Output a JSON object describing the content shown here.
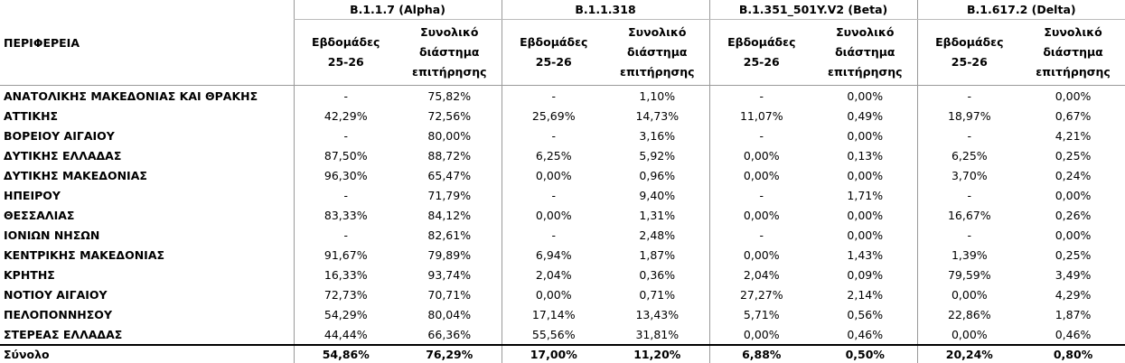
{
  "table": {
    "region_header": "ΠΕΡΙΦΕΡΕΙΑ",
    "groups": [
      "B.1.1.7 (Alpha)",
      "B.1.1.318",
      "B.1.351_501Y.V2 (Beta)",
      "B.1.617.2 (Delta)"
    ],
    "subheaders": [
      "Εβδομάδες 25-26",
      "Συνολικό διάστημα επιτήρησης",
      "Εβδομάδες 25-26",
      "Συνολικό διάστημα επιτήρησης",
      "Εβδομάδες 25-26",
      "Συνολικό διάστημα επιτήρησης",
      "Εβδομάδες 25-26",
      "Συνολικό διάστημα επιτήρησης"
    ],
    "rows": [
      {
        "region": "ΑΝΑΤΟΛΙΚΗΣ ΜΑΚΕΔΟΝΙΑΣ ΚΑΙ ΘΡΑΚΗΣ",
        "values": [
          "-",
          "75,82%",
          "-",
          "1,10%",
          "-",
          "0,00%",
          "-",
          "0,00%"
        ]
      },
      {
        "region": "ΑΤΤΙΚΗΣ",
        "values": [
          "42,29%",
          "72,56%",
          "25,69%",
          "14,73%",
          "11,07%",
          "0,49%",
          "18,97%",
          "0,67%"
        ]
      },
      {
        "region": "ΒΟΡΕΙΟΥ ΑΙΓΑΙΟΥ",
        "values": [
          "-",
          "80,00%",
          "-",
          "3,16%",
          "-",
          "0,00%",
          "-",
          "4,21%"
        ]
      },
      {
        "region": "ΔΥΤΙΚΗΣ ΕΛΛΑΔΑΣ",
        "values": [
          "87,50%",
          "88,72%",
          "6,25%",
          "5,92%",
          "0,00%",
          "0,13%",
          "6,25%",
          "0,25%"
        ]
      },
      {
        "region": "ΔΥΤΙΚΗΣ ΜΑΚΕΔΟΝΙΑΣ",
        "values": [
          "96,30%",
          "65,47%",
          "0,00%",
          "0,96%",
          "0,00%",
          "0,00%",
          "3,70%",
          "0,24%"
        ]
      },
      {
        "region": "ΗΠΕΙΡΟΥ",
        "values": [
          "-",
          "71,79%",
          "-",
          "9,40%",
          "-",
          "1,71%",
          "-",
          "0,00%"
        ]
      },
      {
        "region": "ΘΕΣΣΑΛΙΑΣ",
        "values": [
          "83,33%",
          "84,12%",
          "0,00%",
          "1,31%",
          "0,00%",
          "0,00%",
          "16,67%",
          "0,26%"
        ]
      },
      {
        "region": "ΙΟΝΙΩΝ ΝΗΣΩΝ",
        "values": [
          "-",
          "82,61%",
          "-",
          "2,48%",
          "-",
          "0,00%",
          "-",
          "0,00%"
        ]
      },
      {
        "region": "ΚΕΝΤΡΙΚΗΣ ΜΑΚΕΔΟΝΙΑΣ",
        "values": [
          "91,67%",
          "79,89%",
          "6,94%",
          "1,87%",
          "0,00%",
          "1,43%",
          "1,39%",
          "0,25%"
        ]
      },
      {
        "region": "ΚΡΗΤΗΣ",
        "values": [
          "16,33%",
          "93,74%",
          "2,04%",
          "0,36%",
          "2,04%",
          "0,09%",
          "79,59%",
          "3,49%"
        ]
      },
      {
        "region": "ΝΟΤΙΟΥ ΑΙΓΑΙΟΥ",
        "values": [
          "72,73%",
          "70,71%",
          "0,00%",
          "0,71%",
          "27,27%",
          "2,14%",
          "0,00%",
          "4,29%"
        ]
      },
      {
        "region": "ΠΕΛΟΠΟΝΝΗΣΟΥ",
        "values": [
          "54,29%",
          "80,04%",
          "17,14%",
          "13,43%",
          "5,71%",
          "0,56%",
          "22,86%",
          "1,87%"
        ]
      },
      {
        "region": "ΣΤΕΡΕΑΣ ΕΛΛΑΔΑΣ",
        "values": [
          "44,44%",
          "66,36%",
          "55,56%",
          "31,81%",
          "0,00%",
          "0,46%",
          "0,00%",
          "0,46%"
        ]
      }
    ],
    "total": {
      "label": "Σύνολο",
      "values": [
        "54,86%",
        "76,29%",
        "17,00%",
        "11,20%",
        "6,88%",
        "0,50%",
        "20,24%",
        "0,80%"
      ]
    }
  }
}
